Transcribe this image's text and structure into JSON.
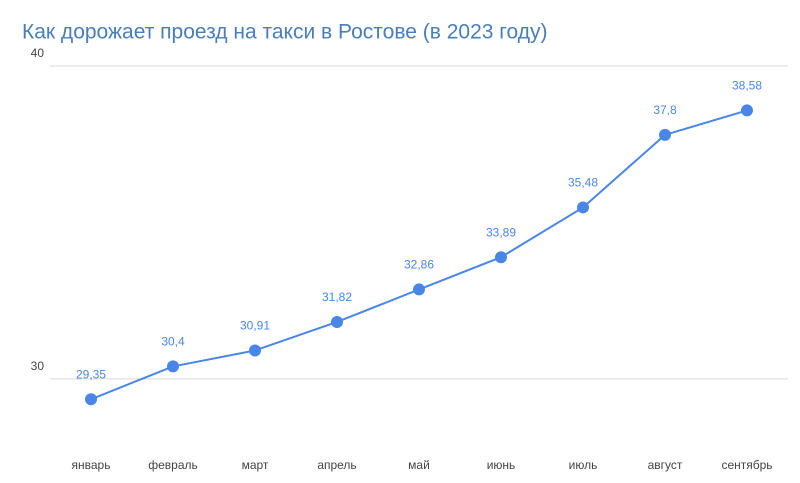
{
  "chart_data": {
    "type": "line",
    "title": "Как дорожает проезд на такси в Ростове (в 2023 году)",
    "categories": [
      "январь",
      "февраль",
      "март",
      "апрель",
      "май",
      "июнь",
      "июль",
      "август",
      "сентябрь"
    ],
    "values": [
      29.35,
      30.4,
      30.91,
      31.82,
      32.86,
      33.89,
      35.48,
      37.8,
      38.58
    ],
    "value_labels": [
      "29,35",
      "30,4",
      "30,91",
      "31,82",
      "32,86",
      "33,89",
      "35,48",
      "37,8",
      "38,58"
    ],
    "color": "#4a86e8",
    "ylim": [
      28.4,
      40
    ],
    "yticks": [
      30,
      40
    ],
    "grid": true
  }
}
